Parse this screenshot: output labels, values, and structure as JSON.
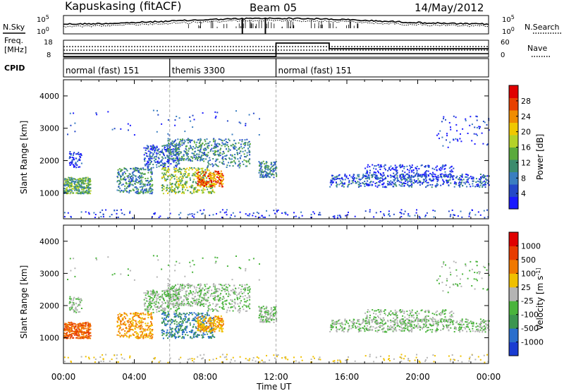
{
  "header": {
    "station": "Kapuskasing (fitACF)",
    "beam": "Beam 05",
    "date": "14/May/2012"
  },
  "chart_data": [
    {
      "type": "line",
      "panel": "noise",
      "left_label": "N.Sky",
      "right_label": "N.Search",
      "left_ticks": [
        "10^5",
        "10^0"
      ],
      "right_ticks": [
        "10^5",
        "10^0"
      ]
    },
    {
      "type": "line",
      "panel": "freq-nave",
      "left_label_1": "Freq.",
      "left_label_2": "[MHz]",
      "right_label": "Nave",
      "left_ticks": [
        "18",
        "8"
      ],
      "right_ticks": [
        "60",
        "0"
      ],
      "nave_steps": [
        {
          "start_hour": 0,
          "end_hour": 12,
          "value": 2
        },
        {
          "start_hour": 12,
          "end_hour": 15,
          "value": 50
        },
        {
          "start_hour": 15,
          "end_hour": 24,
          "value": 30
        }
      ]
    },
    {
      "type": "table",
      "panel": "cpid",
      "label": "CPID",
      "segments": [
        {
          "start_hour": 0,
          "end_hour": 6,
          "label": "normal (fast) 151"
        },
        {
          "start_hour": 6,
          "end_hour": 12,
          "label": "themis 3300"
        },
        {
          "start_hour": 12,
          "end_hour": 24,
          "label": "normal (fast) 151"
        }
      ]
    },
    {
      "type": "heatmap",
      "panel": "power",
      "ylabel": "Slant Range [km]",
      "yticks": [
        "1000",
        "2000",
        "3000",
        "4000"
      ],
      "ylim": [
        200,
        4500
      ],
      "colorbar_label": "Power [dB]",
      "colorbar_ticks": [
        "4",
        "8",
        "12",
        "16",
        "20",
        "24",
        "28"
      ],
      "colorbar_colors": [
        "#1a1aff",
        "#2448c8",
        "#3a7ec0",
        "#3c8c6e",
        "#5aaa3c",
        "#b4d228",
        "#f0c800",
        "#f08c00",
        "#e84000",
        "#e00000"
      ]
    },
    {
      "type": "heatmap",
      "panel": "velocity",
      "ylabel": "Slant Range [km]",
      "yticks": [
        "1000",
        "2000",
        "3000",
        "4000"
      ],
      "ylim": [
        200,
        4500
      ],
      "colorbar_label": "Velocity [m s^-1]",
      "colorbar_ticks": [
        "1000",
        "500",
        "100",
        "25",
        "-25",
        "-100",
        "-500",
        "-1000"
      ],
      "colorbar_colors": [
        "#1a3cd2",
        "#2a6ecc",
        "#3c9650",
        "#4ab43c",
        "#b4b4b4",
        "#f0c000",
        "#f07800",
        "#e83c00",
        "#e00000"
      ]
    }
  ],
  "xaxis": {
    "label": "Time UT",
    "ticks": [
      "00:00",
      "04:00",
      "08:00",
      "12:00",
      "16:00",
      "20:00",
      "00:00"
    ]
  }
}
